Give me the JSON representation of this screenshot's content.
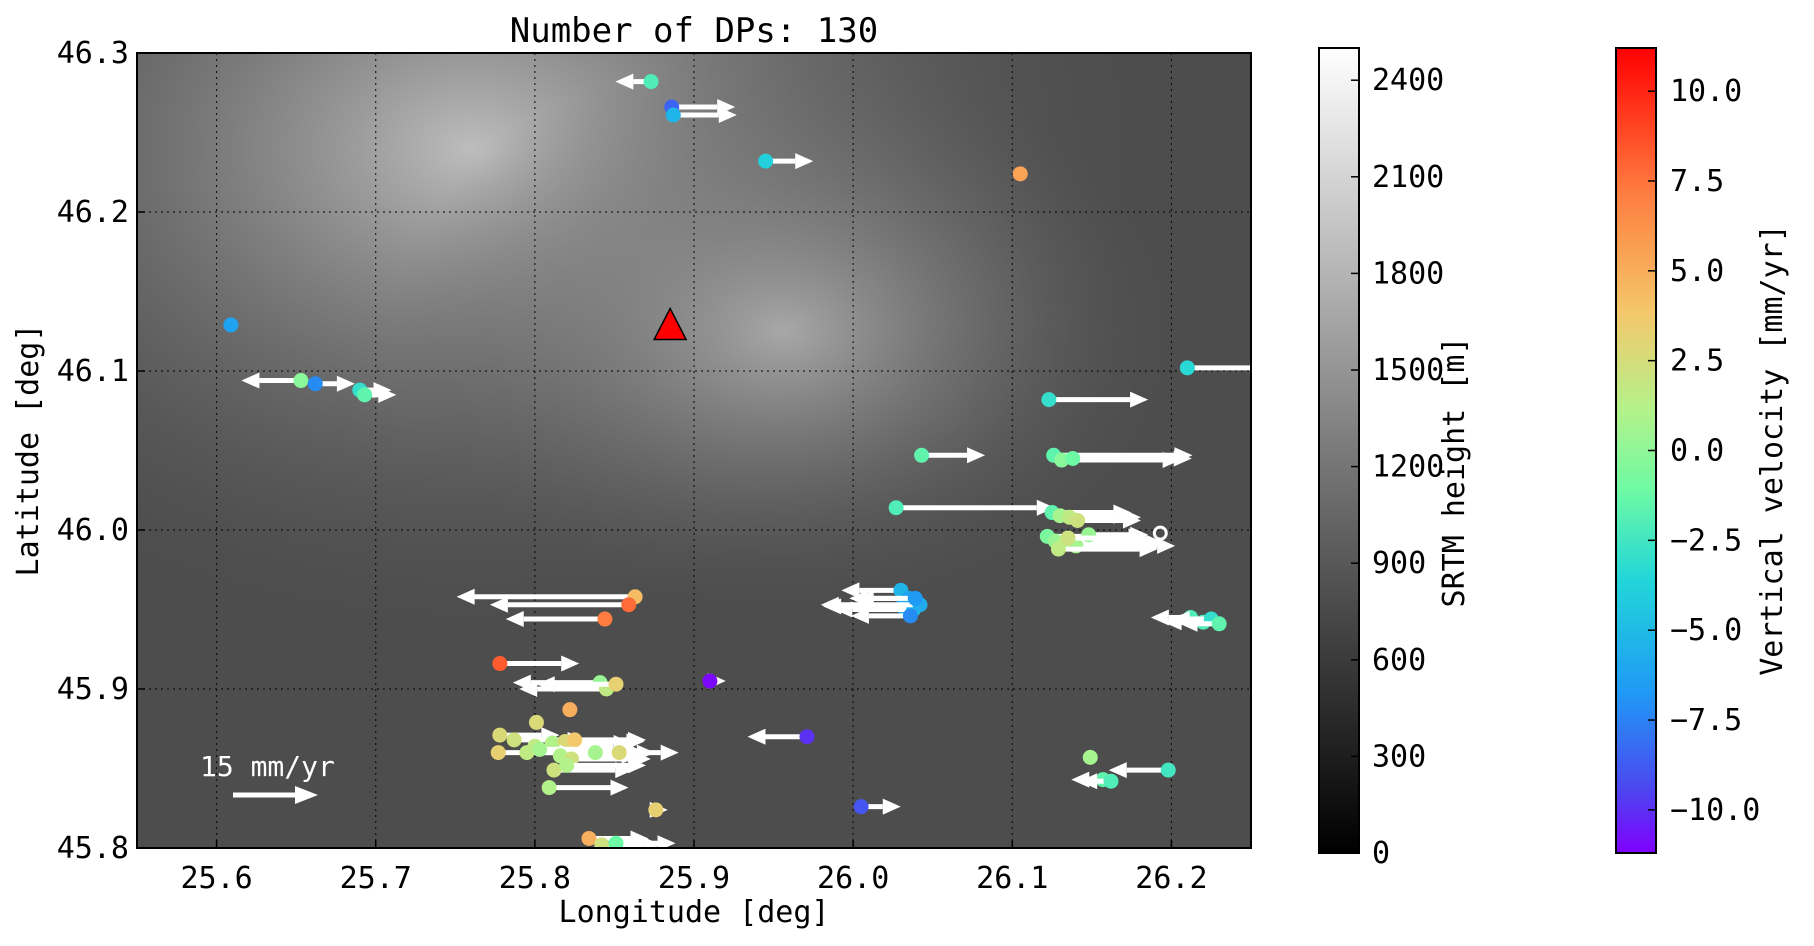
{
  "chart_data": {
    "type": "scatter",
    "title": "Number of DPs: 130",
    "xlabel": "Longitude [deg]",
    "ylabel": "Latitude [deg]",
    "xlim": [
      25.55,
      26.25
    ],
    "ylim": [
      45.8,
      46.3
    ],
    "xticks": [
      "25.6",
      "25.7",
      "25.8",
      "25.9",
      "26.0",
      "26.1",
      "26.2"
    ],
    "yticks": [
      "45.8",
      "45.9",
      "46.0",
      "46.1",
      "46.2",
      "46.3"
    ],
    "grid": true,
    "background": "SRTM elevation (grayscale)",
    "volcano_marker": {
      "lon": 25.885,
      "lat": 46.128,
      "color": "#ff0000"
    },
    "scale_arrow_label": "15 mm/yr",
    "colorbars": [
      {
        "label": "SRTM height [m]",
        "ticks": [
          "0",
          "300",
          "600",
          "900",
          "1200",
          "1500",
          "1800",
          "2100",
          "2400"
        ],
        "range": [
          0,
          2500
        ],
        "colormap": "gray"
      },
      {
        "label": "Vertical velocity [mm/yr]",
        "ticks": [
          "10.0",
          "7.5",
          "5.0",
          "2.5",
          "0.0",
          "−2.5",
          "−5.0",
          "−7.5",
          "−10.0"
        ],
        "range": [
          -11.2,
          11.2
        ],
        "colormap": "rainbow"
      }
    ],
    "points": [
      {
        "lon": 25.873,
        "lat": 46.282,
        "v": -1.5,
        "e": -0.9
      },
      {
        "lon": 25.886,
        "lat": 46.266,
        "v": -8.5,
        "e": 1.6
      },
      {
        "lon": 25.887,
        "lat": 46.261,
        "v": -5.0,
        "e": 1.6
      },
      {
        "lon": 25.945,
        "lat": 46.232,
        "v": -3.5,
        "e": 1.2
      },
      {
        "lon": 26.105,
        "lat": 46.224,
        "v": 6.0,
        "e": 0
      },
      {
        "lon": 25.609,
        "lat": 46.129,
        "v": -6.0,
        "e": 0
      },
      {
        "lon": 25.653,
        "lat": 46.094,
        "v": 0.5,
        "e": -1.5
      },
      {
        "lon": 25.662,
        "lat": 46.092,
        "v": -7.0,
        "e": 1.0
      },
      {
        "lon": 25.69,
        "lat": 46.088,
        "v": -2.5,
        "e": 0.8
      },
      {
        "lon": 25.693,
        "lat": 46.085,
        "v": -1.0,
        "e": 0.8
      },
      {
        "lon": 26.21,
        "lat": 46.102,
        "v": -3.0,
        "e": 2.5
      },
      {
        "lon": 26.123,
        "lat": 46.082,
        "v": -2.5,
        "e": 2.5
      },
      {
        "lon": 26.043,
        "lat": 46.047,
        "v": -1.0,
        "e": 1.6
      },
      {
        "lon": 26.126,
        "lat": 46.047,
        "v": -1.0,
        "e": 3.5
      },
      {
        "lon": 26.131,
        "lat": 46.044,
        "v": 0.5,
        "e": 3.0
      },
      {
        "lon": 26.138,
        "lat": 46.045,
        "v": -0.5,
        "e": 3.0
      },
      {
        "lon": 26.027,
        "lat": 46.014,
        "v": -1.5,
        "e": 4.0
      },
      {
        "lon": 26.125,
        "lat": 46.011,
        "v": -1.0,
        "e": 2.0
      },
      {
        "lon": 26.13,
        "lat": 46.009,
        "v": 1.5,
        "e": 1.8
      },
      {
        "lon": 26.136,
        "lat": 46.008,
        "v": 2.5,
        "e": 1.8
      },
      {
        "lon": 26.141,
        "lat": 46.006,
        "v": 3.0,
        "e": 1.6
      },
      {
        "lon": 26.122,
        "lat": 45.996,
        "v": 0.0,
        "e": 2.5
      },
      {
        "lon": 26.127,
        "lat": 45.993,
        "v": 1.0,
        "e": 2.5
      },
      {
        "lon": 26.133,
        "lat": 45.992,
        "v": 2.0,
        "e": 2.5
      },
      {
        "lon": 26.14,
        "lat": 45.99,
        "v": 1.5,
        "e": 2.5
      },
      {
        "lon": 26.148,
        "lat": 45.997,
        "v": 1.0,
        "e": 1.5
      },
      {
        "lon": 26.129,
        "lat": 45.988,
        "v": 2.5,
        "e": 2.5
      },
      {
        "lon": 26.135,
        "lat": 45.995,
        "v": 3.0,
        "e": 2.0
      },
      {
        "lon": 26.193,
        "lat": 45.998,
        "v": null,
        "e": 0
      },
      {
        "lon": 26.03,
        "lat": 45.962,
        "v": -5.0,
        "e": -1.5
      },
      {
        "lon": 26.035,
        "lat": 45.957,
        "v": -6.0,
        "e": -1.5
      },
      {
        "lon": 26.031,
        "lat": 45.952,
        "v": -5.5,
        "e": -2.0
      },
      {
        "lon": 26.038,
        "lat": 45.95,
        "v": -4.5,
        "e": -2.0
      },
      {
        "lon": 26.042,
        "lat": 45.953,
        "v": -5.5,
        "e": -2.5
      },
      {
        "lon": 26.039,
        "lat": 45.957,
        "v": -6.5,
        "e": -1.5
      },
      {
        "lon": 26.036,
        "lat": 45.946,
        "v": -7.0,
        "e": -1.5
      },
      {
        "lon": 26.212,
        "lat": 45.945,
        "v": -1.5,
        "e": -1.0
      },
      {
        "lon": 26.22,
        "lat": 45.942,
        "v": -1.5,
        "e": -1.0
      },
      {
        "lon": 26.225,
        "lat": 45.944,
        "v": -2.5,
        "e": -1.0
      },
      {
        "lon": 26.23,
        "lat": 45.941,
        "v": -1.0,
        "e": -1.0
      },
      {
        "lon": 25.863,
        "lat": 45.958,
        "v": 5.0,
        "e": -4.5
      },
      {
        "lon": 25.859,
        "lat": 45.953,
        "v": 8.0,
        "e": -3.5
      },
      {
        "lon": 25.844,
        "lat": 45.944,
        "v": 7.5,
        "e": -2.5
      },
      {
        "lon": 25.778,
        "lat": 45.916,
        "v": 8.5,
        "e": 2.0
      },
      {
        "lon": 25.841,
        "lat": 45.904,
        "v": 1.0,
        "e": -2.2
      },
      {
        "lon": 25.845,
        "lat": 45.9,
        "v": 2.5,
        "e": -2.2
      },
      {
        "lon": 25.851,
        "lat": 45.903,
        "v": 4.0,
        "e": -2.0
      },
      {
        "lon": 25.91,
        "lat": 45.905,
        "v": -11.0,
        "e": 0.4
      },
      {
        "lon": 25.822,
        "lat": 45.887,
        "v": 5.5,
        "e": 0
      },
      {
        "lon": 25.971,
        "lat": 45.87,
        "v": -10.0,
        "e": -1.5
      },
      {
        "lon": 25.778,
        "lat": 45.871,
        "v": 3.5,
        "e": 1.5
      },
      {
        "lon": 25.787,
        "lat": 45.868,
        "v": 3.0,
        "e": 1.8
      },
      {
        "lon": 25.8,
        "lat": 45.864,
        "v": 2.5,
        "e": 2.0
      },
      {
        "lon": 25.811,
        "lat": 45.866,
        "v": 2.0,
        "e": 2.0
      },
      {
        "lon": 25.819,
        "lat": 45.867,
        "v": 3.5,
        "e": 2.0
      },
      {
        "lon": 25.825,
        "lat": 45.868,
        "v": 4.5,
        "e": 1.8
      },
      {
        "lon": 25.777,
        "lat": 45.86,
        "v": 4.0,
        "e": 2.0
      },
      {
        "lon": 25.795,
        "lat": 45.86,
        "v": 2.5,
        "e": 2.0
      },
      {
        "lon": 25.803,
        "lat": 45.862,
        "v": 1.5,
        "e": 2.5
      },
      {
        "lon": 25.816,
        "lat": 45.858,
        "v": 2.0,
        "e": 2.0
      },
      {
        "lon": 25.823,
        "lat": 45.856,
        "v": 3.0,
        "e": 2.0
      },
      {
        "lon": 25.838,
        "lat": 45.86,
        "v": 1.5,
        "e": 1.5
      },
      {
        "lon": 25.853,
        "lat": 45.86,
        "v": 3.5,
        "e": 1.5
      },
      {
        "lon": 25.812,
        "lat": 45.849,
        "v": 3.0,
        "e": 2.0
      },
      {
        "lon": 25.82,
        "lat": 45.852,
        "v": 2.0,
        "e": 2.0
      },
      {
        "lon": 25.801,
        "lat": 45.879,
        "v": 3.5,
        "e": 0
      },
      {
        "lon": 25.809,
        "lat": 45.838,
        "v": 2.0,
        "e": 2.0
      },
      {
        "lon": 25.876,
        "lat": 45.824,
        "v": 4.0,
        "e": 0.3
      },
      {
        "lon": 26.005,
        "lat": 45.826,
        "v": -9.0,
        "e": 1.0
      },
      {
        "lon": 26.149,
        "lat": 45.857,
        "v": 1.5,
        "e": 0
      },
      {
        "lon": 26.198,
        "lat": 45.849,
        "v": -2.0,
        "e": -1.5
      },
      {
        "lon": 26.157,
        "lat": 45.843,
        "v": -1.0,
        "e": -0.8
      },
      {
        "lon": 26.162,
        "lat": 45.842,
        "v": -1.5,
        "e": -0.8
      },
      {
        "lon": 25.834,
        "lat": 45.806,
        "v": 5.5,
        "e": 1.5
      },
      {
        "lon": 25.842,
        "lat": 45.802,
        "v": 3.0,
        "e": 1.5
      },
      {
        "lon": 25.851,
        "lat": 45.803,
        "v": -0.5,
        "e": 1.5
      }
    ]
  }
}
